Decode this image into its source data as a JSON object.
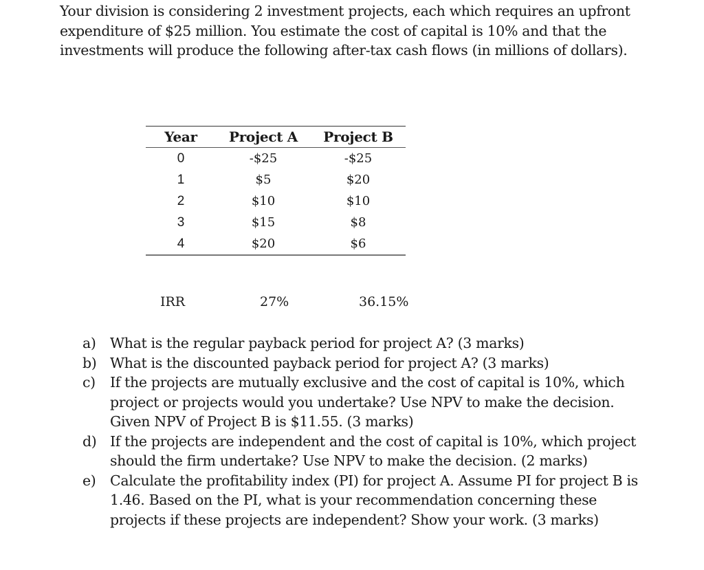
{
  "intro": {
    "lines": [
      "Your division is considering 2 investment projects, each which requires an upfront",
      "expenditure of $25 million.  You estimate the cost of capital is 10% and that the",
      "investments will produce the following after-tax cash flows (in millions of dollars)."
    ]
  },
  "table": {
    "headers": [
      "Year",
      "Project A",
      "Project B"
    ],
    "rows": [
      [
        "0",
        "-$25",
        "-$25"
      ],
      [
        "1",
        "$5",
        "$20"
      ],
      [
        "2",
        "$10",
        "$10"
      ],
      [
        "3",
        "$15",
        "$8"
      ],
      [
        "4",
        "$20",
        "$6"
      ]
    ]
  },
  "irr": {
    "label": "IRR",
    "project_a": "27%",
    "project_b": "36.15%"
  },
  "questions": [
    {
      "marker": "a)",
      "lines": [
        "What is the regular payback period for project A? (3 marks)"
      ]
    },
    {
      "marker": "b)",
      "lines": [
        "What is the discounted payback period for project A? (3 marks)"
      ]
    },
    {
      "marker": "c)",
      "lines": [
        "If the projects are mutually exclusive and the cost of capital is 10%, which",
        "project or projects would you undertake?  Use NPV to make the decision.",
        "Given NPV of Project B is $11.55.  (3 marks)"
      ]
    },
    {
      "marker": "d)",
      "lines": [
        "If the projects are independent and the cost of capital is 10%, which project",
        "should the firm undertake? Use NPV to make the decision. (2 marks)"
      ]
    },
    {
      "marker": "e)",
      "lines": [
        "Calculate the profitability index (PI) for project A.  Assume PI for project B is",
        "1.46.  Based on the PI, what is your recommendation concerning these",
        "projects if these projects are independent? Show your work. (3 marks)"
      ]
    }
  ]
}
